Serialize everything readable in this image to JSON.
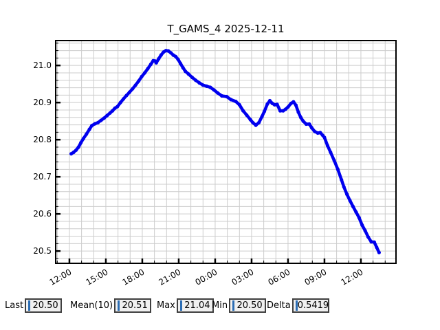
{
  "window": {
    "background": "#ffffff"
  },
  "chart_data": {
    "type": "line",
    "title": "T_GAMS_4 2025-12-11",
    "xlabel": "",
    "ylabel": "",
    "x_unit": "time of day (starting 2025-12-11 12:00, into next day)",
    "xlim": [
      -1.13,
      26.89
    ],
    "ylim": [
      20.467,
      21.067
    ],
    "x_major_ticks": [
      0,
      3,
      6,
      9,
      12,
      15,
      18,
      21,
      24
    ],
    "x_tick_labels": [
      "12:00",
      "15:00",
      "18:00",
      "21:00",
      "00:00",
      "03:00",
      "06:00",
      "09:00",
      "12:00"
    ],
    "x_minor_step": 1,
    "y_major_ticks": [
      20.5,
      20.6,
      20.7,
      20.8,
      20.9,
      21.0
    ],
    "y_tick_labels": [
      "20.5",
      "20.6",
      "20.7",
      "20.8",
      "20.9",
      "21.0"
    ],
    "y_minor_step": 0.02,
    "grid": true,
    "grid_color": "#cccccc",
    "spine_color": "#000000",
    "legend_position": "none",
    "series": [
      {
        "name": "T_GAMS_4",
        "color": "#0000ee",
        "marker": "dot",
        "points": [
          [
            0.15,
            20.762
          ],
          [
            0.35,
            20.766
          ],
          [
            0.55,
            20.772
          ],
          [
            0.75,
            20.78
          ],
          [
            0.95,
            20.792
          ],
          [
            1.15,
            20.803
          ],
          [
            1.4,
            20.815
          ],
          [
            1.65,
            20.828
          ],
          [
            1.85,
            20.838
          ],
          [
            2.1,
            20.843
          ],
          [
            2.35,
            20.846
          ],
          [
            2.6,
            20.852
          ],
          [
            2.85,
            20.858
          ],
          [
            3.1,
            20.865
          ],
          [
            3.35,
            20.872
          ],
          [
            3.55,
            20.878
          ],
          [
            3.75,
            20.885
          ],
          [
            3.95,
            20.889
          ],
          [
            4.2,
            20.9
          ],
          [
            4.45,
            20.91
          ],
          [
            4.7,
            20.919
          ],
          [
            4.95,
            20.928
          ],
          [
            5.2,
            20.937
          ],
          [
            5.45,
            20.947
          ],
          [
            5.7,
            20.958
          ],
          [
            5.95,
            20.97
          ],
          [
            6.2,
            20.98
          ],
          [
            6.45,
            20.991
          ],
          [
            6.7,
            21.003
          ],
          [
            6.9,
            21.013
          ],
          [
            7.05,
            21.012
          ],
          [
            7.15,
            21.007
          ],
          [
            7.35,
            21.018
          ],
          [
            7.55,
            21.028
          ],
          [
            7.75,
            21.036
          ],
          [
            7.95,
            21.04
          ],
          [
            8.15,
            21.039
          ],
          [
            8.35,
            21.034
          ],
          [
            8.55,
            21.028
          ],
          [
            8.75,
            21.024
          ],
          [
            8.95,
            21.016
          ],
          [
            9.15,
            21.005
          ],
          [
            9.35,
            20.994
          ],
          [
            9.55,
            20.984
          ],
          [
            9.8,
            20.977
          ],
          [
            10.1,
            20.968
          ],
          [
            10.4,
            20.96
          ],
          [
            10.7,
            20.953
          ],
          [
            11.0,
            20.947
          ],
          [
            11.3,
            20.944
          ],
          [
            11.6,
            20.941
          ],
          [
            11.9,
            20.934
          ],
          [
            12.2,
            20.926
          ],
          [
            12.55,
            20.918
          ],
          [
            12.95,
            20.916
          ],
          [
            13.3,
            20.908
          ],
          [
            13.7,
            20.903
          ],
          [
            14.0,
            20.894
          ],
          [
            14.3,
            20.878
          ],
          [
            14.6,
            20.866
          ],
          [
            14.9,
            20.854
          ],
          [
            15.1,
            20.846
          ],
          [
            15.35,
            20.839
          ],
          [
            15.6,
            20.846
          ],
          [
            15.85,
            20.862
          ],
          [
            16.05,
            20.876
          ],
          [
            16.3,
            20.896
          ],
          [
            16.5,
            20.905
          ],
          [
            16.7,
            20.898
          ],
          [
            16.9,
            20.894
          ],
          [
            17.1,
            20.895
          ],
          [
            17.35,
            20.878
          ],
          [
            17.6,
            20.878
          ],
          [
            17.8,
            20.882
          ],
          [
            18.0,
            20.888
          ],
          [
            18.25,
            20.898
          ],
          [
            18.45,
            20.902
          ],
          [
            18.65,
            20.893
          ],
          [
            18.85,
            20.874
          ],
          [
            19.05,
            20.86
          ],
          [
            19.25,
            20.85
          ],
          [
            19.5,
            20.842
          ],
          [
            19.75,
            20.842
          ],
          [
            19.95,
            20.832
          ],
          [
            20.2,
            20.822
          ],
          [
            20.45,
            20.818
          ],
          [
            20.65,
            20.819
          ],
          [
            20.85,
            20.812
          ],
          [
            21.0,
            20.806
          ],
          [
            21.25,
            20.784
          ],
          [
            21.5,
            20.766
          ],
          [
            21.8,
            20.744
          ],
          [
            22.1,
            20.72
          ],
          [
            22.4,
            20.692
          ],
          [
            22.6,
            20.673
          ],
          [
            22.85,
            20.653
          ],
          [
            23.1,
            20.636
          ],
          [
            23.35,
            20.62
          ],
          [
            23.6,
            20.605
          ],
          [
            23.85,
            20.59
          ],
          [
            24.1,
            20.57
          ],
          [
            24.35,
            20.555
          ],
          [
            24.6,
            20.538
          ],
          [
            24.85,
            20.525
          ],
          [
            25.1,
            20.524
          ],
          [
            25.3,
            20.51
          ],
          [
            25.5,
            20.496
          ]
        ]
      }
    ]
  },
  "stats": {
    "cursor_color": "#2b6db4",
    "items": [
      {
        "label": "Last",
        "value": "20.50"
      },
      {
        "label": "Mean(10)",
        "value": "20.51"
      },
      {
        "label": "Max",
        "value": "21.04"
      },
      {
        "label": "Min",
        "value": "20.50"
      },
      {
        "label": "Delta",
        "value": "0.5419"
      }
    ]
  }
}
